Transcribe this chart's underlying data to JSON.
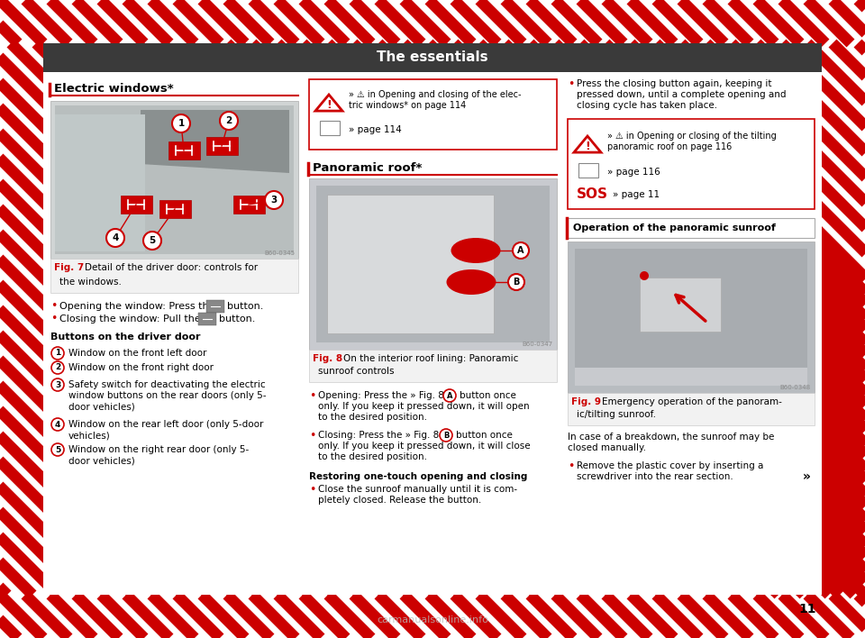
{
  "title": "The essentials",
  "title_bg": "#3d3d3d",
  "title_color": "#ffffff",
  "bg_color": "#ffffff",
  "hatch_color": "#cc0000",
  "page_number": "11",
  "left_section_title": "Electric windows*",
  "mid_section_title": "Panoramic roof*",
  "warn1_line1": "» ⚠ in Opening and closing of the elec-",
  "warn1_line2": "tric windows* on page 114",
  "warn1_page": "» page 114",
  "warn2_line1": "» ⚠ in Opening or closing of the tilting",
  "warn2_line2": "panoramic roof on page 116",
  "warn2_page": "» page 116",
  "sos_text": "» page 11",
  "op_title": "Operation of the panoramic sunroof",
  "fig7_id": "B60-0345",
  "fig8_id": "B60-0347",
  "fig9_id": "B60-0348",
  "watermark": "carmanualsonline.info"
}
